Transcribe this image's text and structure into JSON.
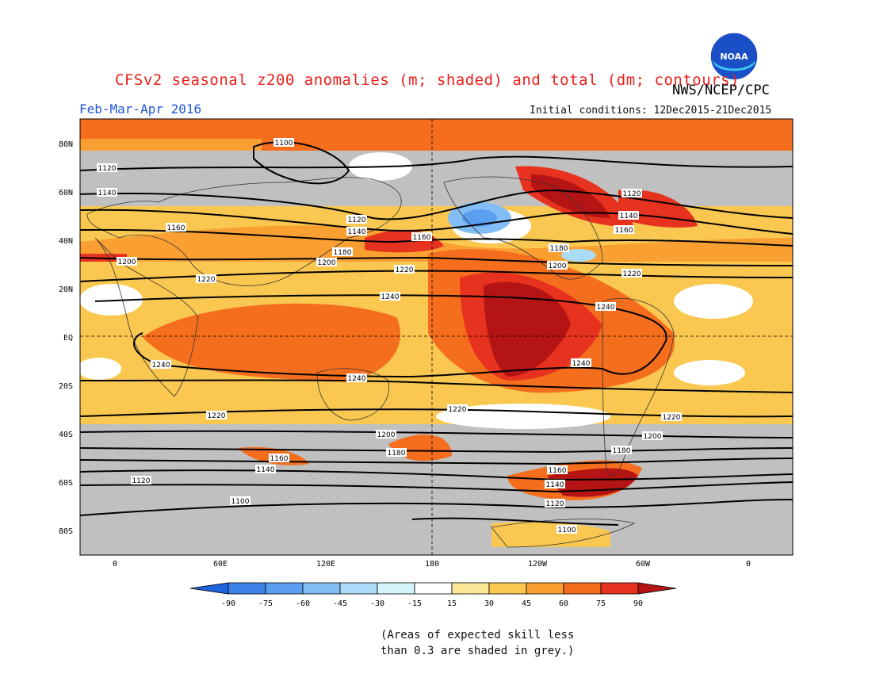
{
  "header": {
    "title": "CFSv2 seasonal z200 anomalies (m; shaded) and total (dm; contours)",
    "agency": "NWS/NCEP/CPC",
    "period": "Feb-Mar-Apr 2016",
    "initial_conditions": "Initial conditions: 12Dec2015-21Dec2015",
    "logo_text": "NOAA"
  },
  "map": {
    "lat_labels": [
      "80N",
      "60N",
      "40N",
      "20N",
      "EQ",
      "20S",
      "40S",
      "60S",
      "80S"
    ],
    "lon_labels": [
      "0",
      "60E",
      "120E",
      "180",
      "120W",
      "60W",
      "0"
    ],
    "contour_labels": [
      "1100",
      "1120",
      "1140",
      "1160",
      "1180",
      "1200",
      "1220",
      "1240"
    ]
  },
  "colorbar": {
    "ticks": [
      "-90",
      "-75",
      "-60",
      "-45",
      "-30",
      "-15",
      "15",
      "30",
      "45",
      "60",
      "75",
      "90"
    ],
    "colors": [
      "#1e64dc",
      "#3c82e6",
      "#5a9ef0",
      "#82bef5",
      "#aadcf8",
      "#d2f4fa",
      "#ffffff",
      "#fae696",
      "#fac850",
      "#faa032",
      "#f56e1e",
      "#e6321e",
      "#b41414"
    ]
  },
  "footnote": {
    "line1": "(Areas of expected skill less",
    "line2": "than 0.3 are shaded in grey.)"
  }
}
